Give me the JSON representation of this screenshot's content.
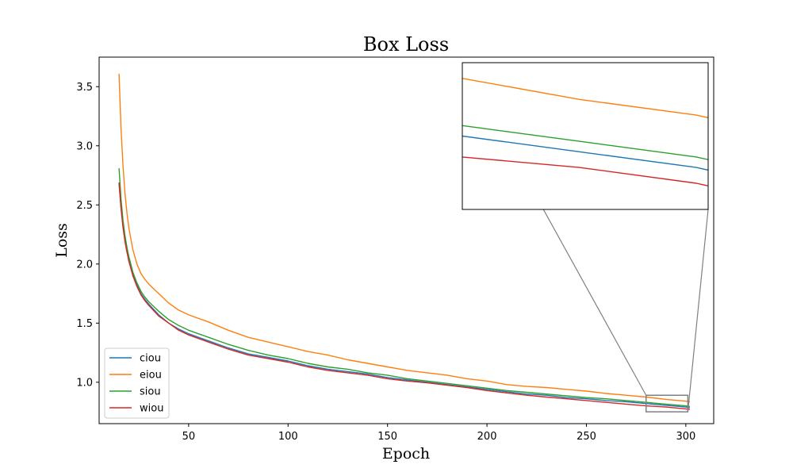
{
  "chart_data": {
    "type": "line",
    "title": "Box Loss",
    "xlabel": "Epoch",
    "ylabel": "Loss",
    "xlim": [
      5,
      314
    ],
    "ylim": [
      0.65,
      3.75
    ],
    "xticks": [
      50,
      100,
      150,
      200,
      250,
      300
    ],
    "yticks": [
      1.0,
      1.5,
      2.0,
      2.5,
      3.0,
      3.5
    ],
    "xtick_labels": [
      "50",
      "100",
      "150",
      "200",
      "250",
      "300"
    ],
    "ytick_labels": [
      "1.0",
      "1.5",
      "2.0",
      "2.5",
      "3.0",
      "3.5"
    ],
    "grid": false,
    "legend_position": "lower-left",
    "x": [
      15,
      16,
      17,
      18,
      19,
      20,
      22,
      24,
      26,
      28,
      30,
      35,
      40,
      45,
      50,
      60,
      70,
      80,
      90,
      100,
      110,
      120,
      130,
      140,
      150,
      160,
      170,
      180,
      190,
      200,
      210,
      220,
      230,
      240,
      250,
      260,
      270,
      280,
      290,
      300,
      302
    ],
    "series": [
      {
        "name": "ciou",
        "color": "#1f77b4",
        "values": [
          2.68,
          2.48,
          2.33,
          2.21,
          2.12,
          2.04,
          1.91,
          1.82,
          1.75,
          1.7,
          1.66,
          1.57,
          1.5,
          1.45,
          1.41,
          1.35,
          1.29,
          1.24,
          1.21,
          1.18,
          1.14,
          1.11,
          1.09,
          1.07,
          1.04,
          1.02,
          1.0,
          0.98,
          0.96,
          0.94,
          0.92,
          0.9,
          0.89,
          0.87,
          0.86,
          0.845,
          0.835,
          0.82,
          0.805,
          0.79,
          0.785
        ]
      },
      {
        "name": "eiou",
        "color": "#ff7f0e",
        "values": [
          3.61,
          3.15,
          2.83,
          2.6,
          2.43,
          2.3,
          2.12,
          2.0,
          1.92,
          1.87,
          1.83,
          1.75,
          1.67,
          1.61,
          1.57,
          1.51,
          1.44,
          1.38,
          1.34,
          1.3,
          1.26,
          1.23,
          1.19,
          1.16,
          1.13,
          1.1,
          1.08,
          1.06,
          1.03,
          1.01,
          0.98,
          0.965,
          0.955,
          0.94,
          0.925,
          0.905,
          0.89,
          0.875,
          0.855,
          0.84,
          0.835
        ]
      },
      {
        "name": "siou",
        "color": "#2ca02c",
        "values": [
          2.81,
          2.55,
          2.37,
          2.24,
          2.14,
          2.06,
          1.93,
          1.84,
          1.77,
          1.72,
          1.68,
          1.6,
          1.53,
          1.48,
          1.44,
          1.38,
          1.32,
          1.27,
          1.23,
          1.2,
          1.16,
          1.13,
          1.11,
          1.08,
          1.06,
          1.03,
          1.01,
          0.99,
          0.97,
          0.95,
          0.93,
          0.915,
          0.9,
          0.885,
          0.87,
          0.86,
          0.845,
          0.83,
          0.815,
          0.8,
          0.795
        ]
      },
      {
        "name": "wiou",
        "color": "#d62728",
        "values": [
          2.69,
          2.47,
          2.31,
          2.19,
          2.1,
          2.02,
          1.9,
          1.81,
          1.74,
          1.69,
          1.65,
          1.56,
          1.5,
          1.44,
          1.4,
          1.34,
          1.28,
          1.23,
          1.2,
          1.17,
          1.13,
          1.1,
          1.08,
          1.06,
          1.03,
          1.01,
          0.995,
          0.975,
          0.955,
          0.93,
          0.91,
          0.89,
          0.875,
          0.86,
          0.845,
          0.83,
          0.815,
          0.8,
          0.79,
          0.775,
          0.77
        ]
      }
    ],
    "inset": {
      "xlim": [
        280,
        301
      ],
      "ylim": [
        0.75,
        0.89
      ]
    }
  }
}
